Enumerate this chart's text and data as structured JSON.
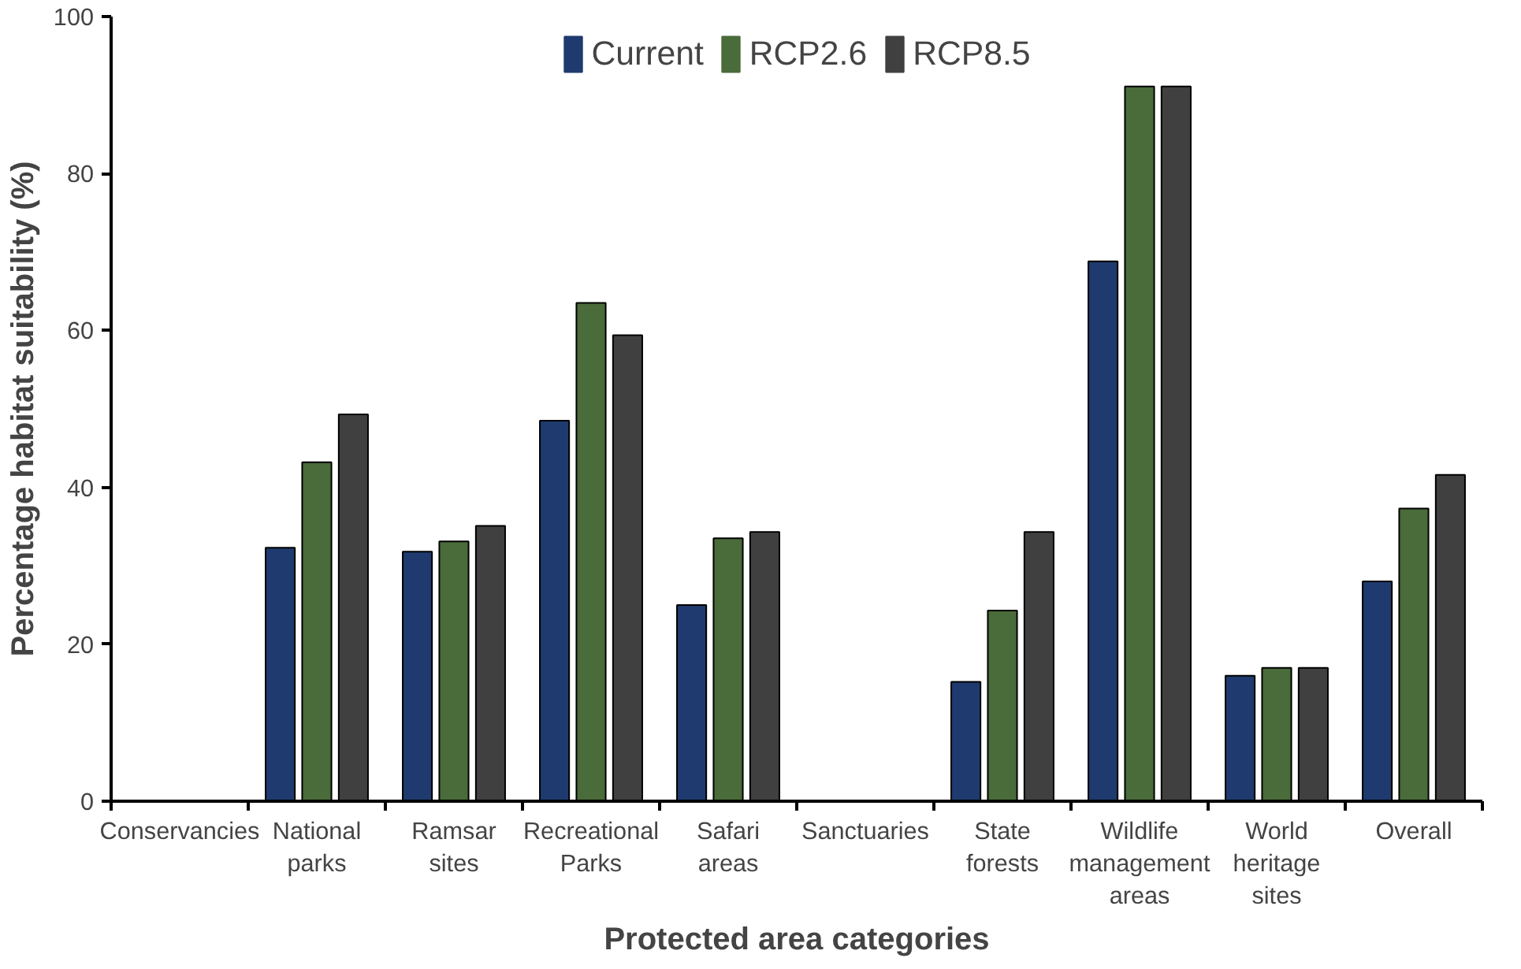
{
  "chart_data": {
    "type": "bar",
    "xlabel": "Protected area categories",
    "ylabel": "Percentage habitat suitability (%)",
    "categories": [
      "Conservancies",
      "National\nparks",
      "Ramsar\nsites",
      "Recreational\nParks",
      "Safari\nareas",
      "Sanctuaries",
      "State\nforests",
      "Wildlife\nmanagement\nareas",
      "World\nheritage\nsites",
      "Overall"
    ],
    "series": [
      {
        "name": "Current",
        "color": "#1f3a6e",
        "values": [
          0,
          32.3,
          31.8,
          48.5,
          25,
          0,
          15.2,
          68.8,
          16,
          28
        ]
      },
      {
        "name": "RCP2.6",
        "color": "#4a6b3a",
        "values": [
          0,
          43.2,
          33.1,
          63.5,
          33.5,
          0,
          24.3,
          91.1,
          17,
          37.3
        ]
      },
      {
        "name": "RCP8.5",
        "color": "#404040",
        "values": [
          0,
          49.3,
          35.1,
          59.4,
          34.3,
          0,
          34.3,
          91.1,
          17,
          41.6
        ]
      }
    ],
    "ylim": [
      0,
      100
    ],
    "yticks": [
      0,
      20,
      40,
      60,
      80,
      100
    ],
    "grid": false,
    "legend": "top"
  }
}
